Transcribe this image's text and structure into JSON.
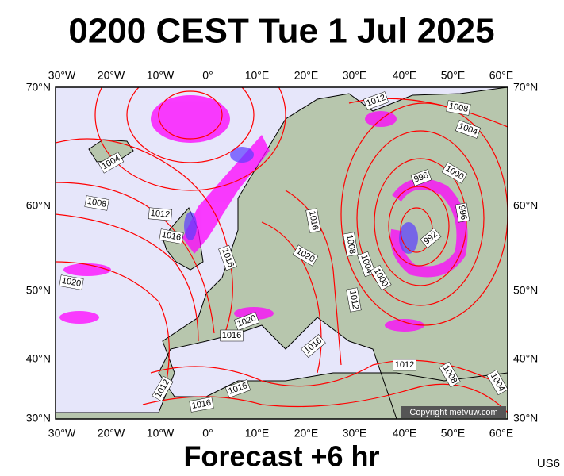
{
  "title": "0200 CEST Tue 1 Jul 2025",
  "footer": "Forecast +6 hr",
  "code": "US6",
  "copyright": "Copyright metvuw.com",
  "longitude_labels": [
    "30°W",
    "20°W",
    "10°W",
    "0°",
    "10°E",
    "20°E",
    "30°E",
    "40°E",
    "50°E",
    "60°E"
  ],
  "latitude_labels": [
    "70°N",
    "60°N",
    "50°N",
    "40°N",
    "30°N"
  ],
  "isobar_labels": [
    "1004",
    "1008",
    "1012",
    "1016",
    "1020",
    "1016",
    "1016",
    "1020",
    "1008",
    "1004",
    "1000",
    "1012",
    "996",
    "1000",
    "996",
    "992",
    "1012",
    "1008",
    "1004",
    "1020",
    "1016",
    "1016",
    "1012",
    "1008",
    "1004",
    "1012",
    "1016",
    "1016"
  ]
}
